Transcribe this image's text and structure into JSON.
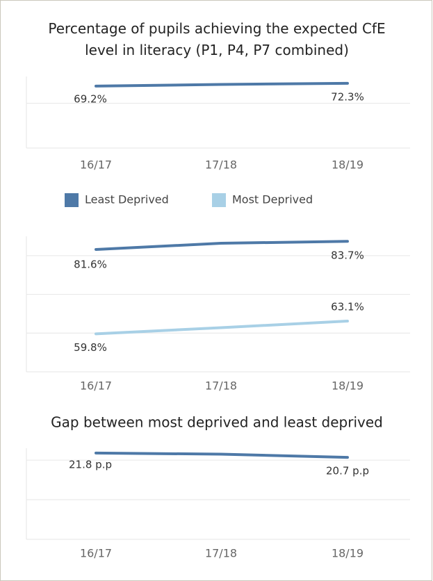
{
  "chart_data": [
    {
      "type": "line",
      "title": "Percentage of pupils achieving the expected CfE level in literacy (P1, P4, P7 combined)",
      "categories": [
        "16/17",
        "17/18",
        "18/19"
      ],
      "series": [
        {
          "name": null,
          "color": "#4e79a7",
          "values": [
            69.2,
            71.1,
            72.3
          ],
          "value_labels": [
            "69.2%",
            null,
            "72.3%"
          ]
        }
      ],
      "ylim": [
        0,
        80
      ],
      "yticks": [
        0,
        50
      ],
      "grid": true
    },
    {
      "type": "line",
      "categories": [
        "16/17",
        "17/18",
        "18/19"
      ],
      "series": [
        {
          "name": "Least Deprived",
          "color": "#4e79a7",
          "values": [
            81.6,
            83.2,
            83.7
          ],
          "value_labels": [
            "81.6%",
            null,
            "83.7%"
          ]
        },
        {
          "name": "Most Deprived",
          "color": "#a8d0e6",
          "values": [
            59.8,
            61.4,
            63.1
          ],
          "value_labels": [
            "59.8%",
            null,
            "63.1%"
          ]
        }
      ],
      "ylim": [
        50,
        85
      ],
      "yticks": [
        50,
        60,
        70,
        80
      ],
      "grid": true,
      "legend": "top"
    },
    {
      "type": "line",
      "title": "Gap between most deprived and least deprived",
      "categories": [
        "16/17",
        "17/18",
        "18/19"
      ],
      "series": [
        {
          "name": null,
          "color": "#4e79a7",
          "values": [
            21.8,
            21.5,
            20.7
          ],
          "value_labels": [
            "21.8 p.p",
            null,
            "20.7 p.p"
          ]
        }
      ],
      "ylim": [
        0,
        23
      ],
      "yticks": [
        0,
        10,
        20
      ],
      "grid": true
    }
  ]
}
